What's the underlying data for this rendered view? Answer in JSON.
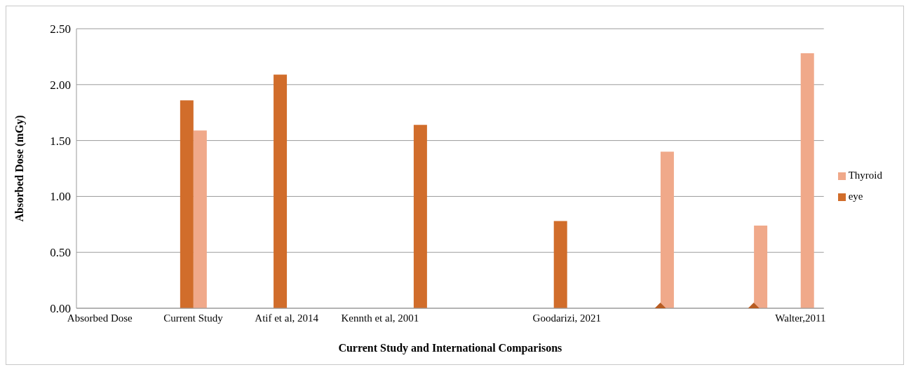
{
  "chart_data": {
    "type": "bar",
    "xlabel": "Current Study and International Comparisons",
    "ylabel": "Absorbed Dose (mGy)",
    "categories": [
      "Absorbed Dose",
      null,
      "Current Study",
      null,
      "Atif et al, 2014",
      null,
      "Kennth et al, 2001",
      null,
      null,
      null,
      "Goodarizi, 2021",
      null,
      null,
      null,
      null,
      "Walter,2011"
    ],
    "series": [
      {
        "name": "eye",
        "color": "#d16d2b",
        "values": [
          null,
          null,
          1.86,
          null,
          2.09,
          null,
          null,
          1.64,
          null,
          null,
          0.78,
          null,
          null,
          null,
          null,
          null
        ]
      },
      {
        "name": "Thyroid",
        "color": "#f0a98a",
        "values": [
          null,
          null,
          1.59,
          null,
          null,
          null,
          null,
          null,
          null,
          null,
          null,
          null,
          1.4,
          null,
          0.74,
          2.28
        ]
      },
      {
        "type": "scatter",
        "color": "#b85c22",
        "marker": "diamond",
        "values": [
          null,
          null,
          null,
          null,
          null,
          null,
          null,
          null,
          null,
          null,
          null,
          null,
          0,
          null,
          0,
          null
        ]
      }
    ],
    "ylim": [
      0,
      2.5
    ],
    "yticks": [
      {
        "value": 0,
        "label": "0.00"
      },
      {
        "value": 0.5,
        "label": "0.50"
      },
      {
        "value": 1,
        "label": "1.00"
      },
      {
        "value": 1.5,
        "label": "1.50"
      },
      {
        "value": 2,
        "label": "2.00"
      },
      {
        "value": 2.5,
        "label": "2.50"
      }
    ],
    "grid": "y",
    "legend": "right"
  }
}
